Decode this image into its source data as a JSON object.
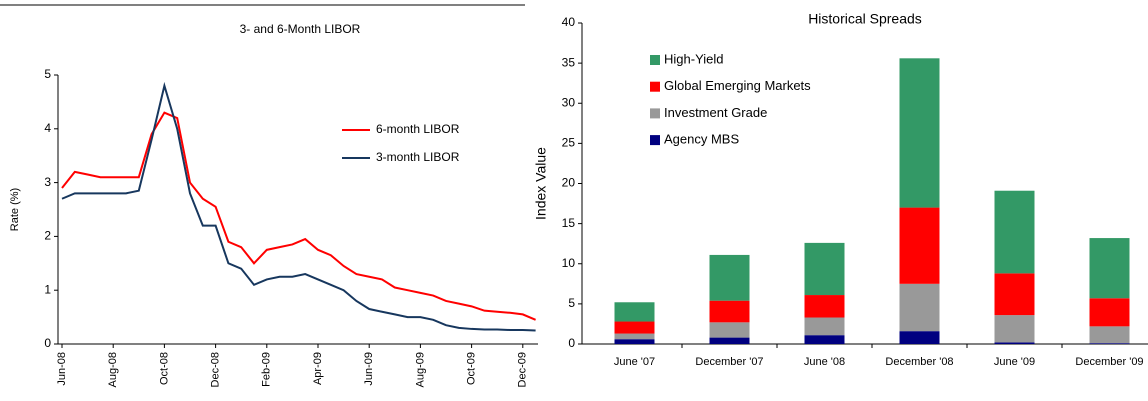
{
  "chart_data": [
    {
      "type": "line",
      "title": "3- and 6-Month LIBOR",
      "y_label": "Rate (%)",
      "categories": [
        "Jun-08",
        null,
        null,
        null,
        "Aug-08",
        null,
        null,
        null,
        "Oct-08",
        null,
        null,
        null,
        "Dec-08",
        null,
        null,
        null,
        "Feb-09",
        null,
        null,
        null,
        "Apr-09",
        null,
        null,
        null,
        "Jun-09",
        null,
        null,
        null,
        "Aug-09",
        null,
        null,
        null,
        "Oct-09",
        null,
        null,
        null,
        "Dec-09",
        null
      ],
      "series": [
        {
          "name": "6-month LIBOR",
          "color": "#ff0000",
          "values": [
            2.9,
            3.2,
            3.15,
            3.1,
            3.1,
            3.1,
            3.1,
            3.9,
            4.3,
            4.2,
            3.0,
            2.7,
            2.55,
            1.9,
            1.8,
            1.5,
            1.75,
            1.8,
            1.85,
            1.95,
            1.75,
            1.65,
            1.45,
            1.3,
            1.25,
            1.2,
            1.05,
            1.0,
            0.95,
            0.9,
            0.8,
            0.75,
            0.7,
            0.62,
            0.6,
            0.58,
            0.55,
            0.45
          ]
        },
        {
          "name": "3-month LIBOR",
          "color": "#17375e",
          "values": [
            2.7,
            2.8,
            2.8,
            2.8,
            2.8,
            2.8,
            2.85,
            3.8,
            4.8,
            4.0,
            2.8,
            2.2,
            2.2,
            1.5,
            1.4,
            1.1,
            1.2,
            1.25,
            1.25,
            1.3,
            1.2,
            1.1,
            1.0,
            0.8,
            0.65,
            0.6,
            0.55,
            0.5,
            0.5,
            0.45,
            0.35,
            0.3,
            0.28,
            0.27,
            0.27,
            0.26,
            0.26,
            0.25
          ]
        }
      ],
      "ylim": [
        0,
        5
      ],
      "yticks": [
        0,
        1,
        2,
        3,
        4,
        5
      ],
      "grid": false
    },
    {
      "type": "bar",
      "stacked": true,
      "title": "Historical Spreads",
      "y_label": "Index Value",
      "categories": [
        "June '07",
        "December '07",
        "June '08",
        "December '08",
        "June '09",
        "December '09"
      ],
      "series": [
        {
          "name": "Agency MBS",
          "color": "#000080",
          "values": [
            0.6,
            0.8,
            1.1,
            1.6,
            0.2,
            0.1
          ]
        },
        {
          "name": "Investment Grade",
          "color": "#999999",
          "values": [
            0.7,
            1.9,
            2.2,
            5.9,
            3.4,
            2.1
          ]
        },
        {
          "name": "Global Emerging Markets",
          "color": "#ff0000",
          "values": [
            1.5,
            2.7,
            2.8,
            9.5,
            5.2,
            3.5
          ]
        },
        {
          "name": "High-Yield",
          "color": "#339966",
          "values": [
            2.4,
            5.7,
            6.5,
            18.6,
            10.3,
            7.5
          ]
        }
      ],
      "ylim": [
        0,
        40
      ],
      "yticks": [
        0,
        5,
        10,
        15,
        20,
        25,
        30,
        35,
        40
      ],
      "grid": false
    }
  ]
}
